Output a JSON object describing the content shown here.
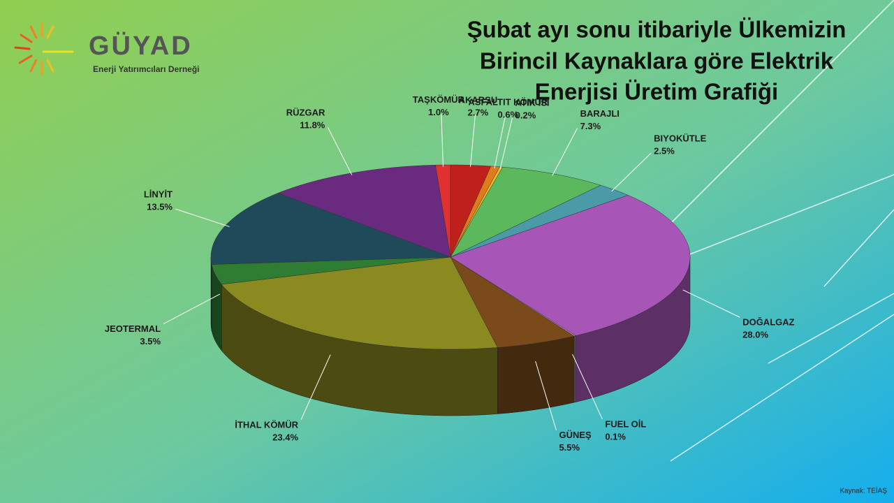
{
  "logo": {
    "name": "GÜYAD",
    "subtitle": "Enerji Yatırımcıları Derneği"
  },
  "chart_data": {
    "type": "pie",
    "title": [
      "Şubat ayı sonu itibariyle Ülkemizin",
      "Birincil Kaynaklara göre Elektrik",
      "Enerjisi Üretim Grafiği"
    ],
    "categories": [
      "AKARSU",
      "ASFALTIT KÖMÜR",
      "ATIK ISI",
      "BARAJLI",
      "BIYOKÜTLE",
      "DOĞALGAZ",
      "FUEL OİL",
      "GÜNEŞ",
      "İTHAL KÖMÜR",
      "JEOTERMAL",
      "LİNYİT",
      "RÜZGAR",
      "TAŞKÖMÜR"
    ],
    "values": [
      2.7,
      0.6,
      0.2,
      7.3,
      2.5,
      28.0,
      0.1,
      5.5,
      23.4,
      3.5,
      13.5,
      11.8,
      1.0
    ],
    "value_labels": [
      "2.7%",
      "0.6%",
      "0.2%",
      "7.3%",
      "2.5%",
      "28.0%",
      "0.1%",
      "5.5%",
      "23.4%",
      "3.5%",
      "13.5%",
      "11.8%",
      "1.0%"
    ],
    "colors": [
      "#c0201c",
      "#e07b1a",
      "#e8c020",
      "#5cb85c",
      "#4a9aa8",
      "#a855b8",
      "#c9a0d0",
      "#7a4a1a",
      "#8a8a20",
      "#2e7d32",
      "#1f4a5a",
      "#6a2a80",
      "#e03030"
    ],
    "source": "Kaynak: TEİAŞ"
  }
}
